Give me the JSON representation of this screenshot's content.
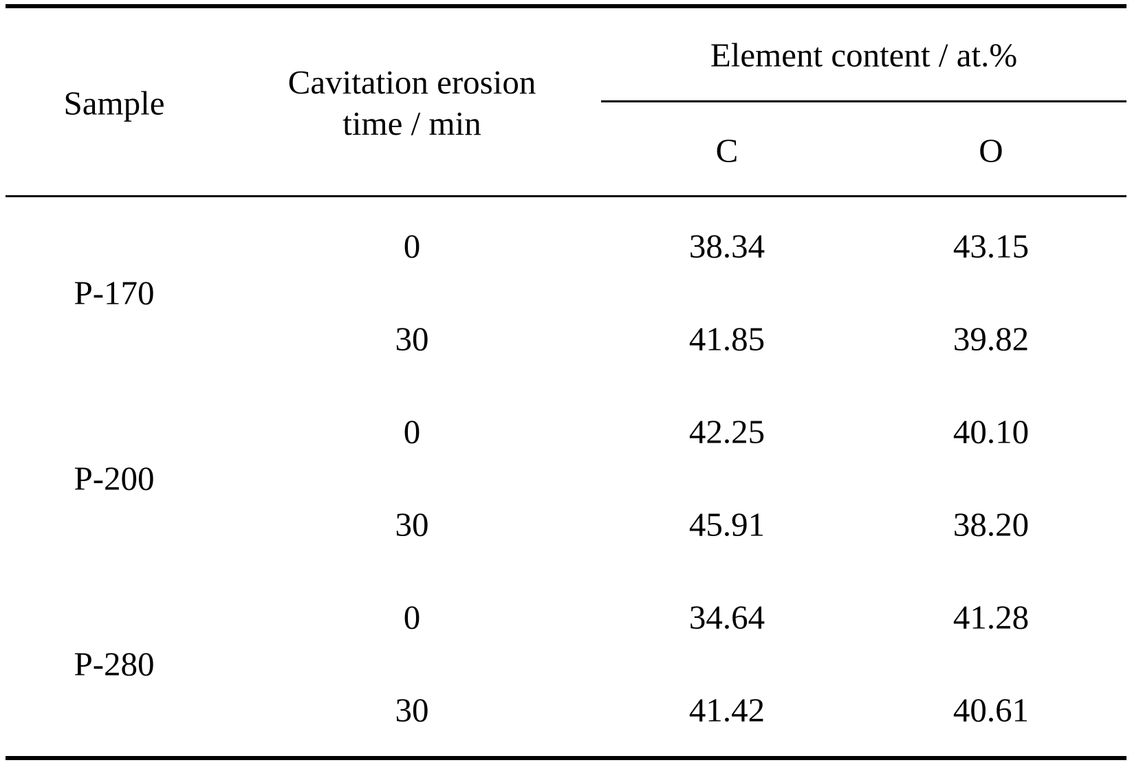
{
  "table": {
    "header": {
      "sample": "Sample",
      "time_line1": "Cavitation erosion",
      "time_line2": "time / min",
      "group": "Element content / at.%",
      "col_c": "C",
      "col_o": "O"
    },
    "groups": [
      {
        "sample": "P-170",
        "rows": [
          {
            "time": "0",
            "c": "38.34",
            "o": "43.15"
          },
          {
            "time": "30",
            "c": "41.85",
            "o": "39.82"
          }
        ]
      },
      {
        "sample": "P-200",
        "rows": [
          {
            "time": "0",
            "c": "42.25",
            "o": "40.10"
          },
          {
            "time": "30",
            "c": "45.91",
            "o": "38.20"
          }
        ]
      },
      {
        "sample": "P-280",
        "rows": [
          {
            "time": "0",
            "c": "34.64",
            "o": "41.28"
          },
          {
            "time": "30",
            "c": "41.42",
            "o": "40.61"
          }
        ]
      }
    ]
  }
}
